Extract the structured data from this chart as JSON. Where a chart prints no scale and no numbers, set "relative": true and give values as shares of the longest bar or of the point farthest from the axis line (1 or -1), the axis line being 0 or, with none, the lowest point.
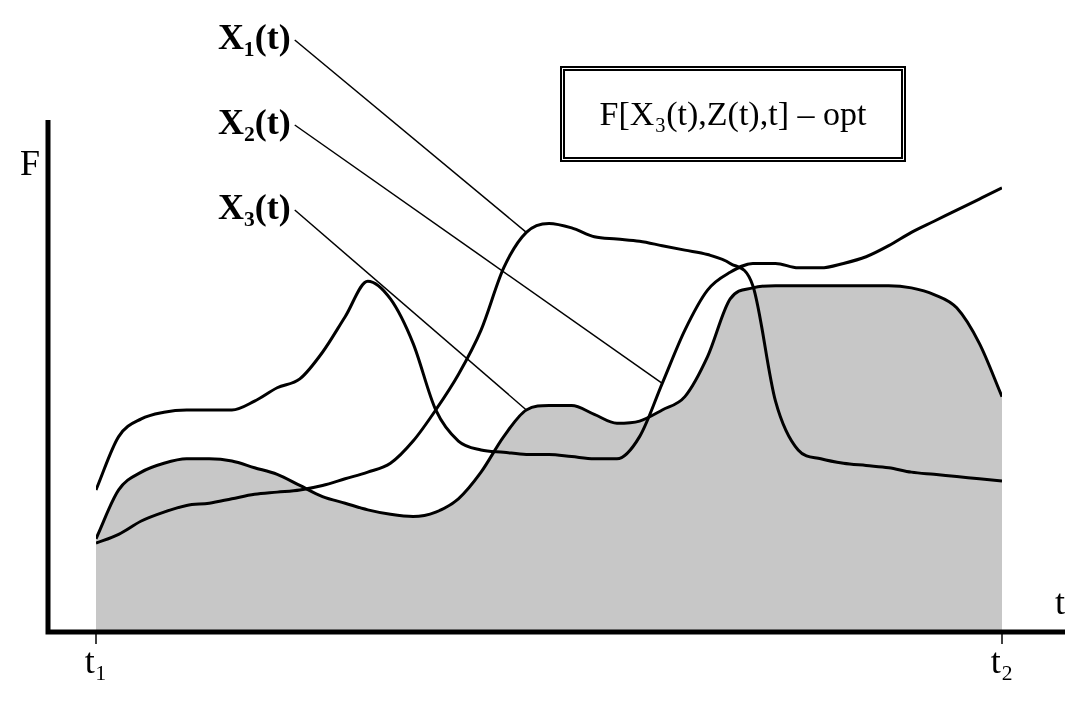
{
  "chart_data": {
    "type": "line",
    "relative": true,
    "xlabel": "t",
    "ylabel": "F",
    "legend": false,
    "grid": false,
    "marker": "none",
    "line_style": "solid",
    "annotations": [
      "F[X₃(t),Z(t),t] – opt"
    ],
    "categories": [
      "t₁",
      null,
      null,
      null,
      null,
      null,
      null,
      null,
      null,
      null,
      null,
      null,
      null,
      null,
      null,
      null,
      null,
      null,
      null,
      null,
      null,
      null,
      null,
      null,
      null,
      null,
      null,
      null,
      null,
      null,
      null,
      null,
      null,
      null,
      null,
      null,
      null,
      null,
      null,
      null,
      "t₂"
    ],
    "series": [
      {
        "name": "X₁(t)",
        "color": "#000000",
        "values": [
          0.2,
          0.22,
          0.25,
          0.27,
          0.285,
          0.29,
          0.3,
          0.31,
          0.315,
          0.32,
          0.33,
          0.345,
          0.36,
          0.38,
          0.43,
          0.5,
          0.58,
          0.68,
          0.82,
          0.9,
          0.92,
          0.91,
          0.89,
          0.885,
          0.88,
          0.87,
          0.86,
          0.85,
          0.83,
          0.78,
          0.52,
          0.41,
          0.39,
          0.38,
          0.375,
          0.37,
          0.36,
          0.355,
          0.35,
          0.345,
          0.34
        ]
      },
      {
        "name": "X₂(t)",
        "color": "#000000",
        "values": [
          0.32,
          0.44,
          0.48,
          0.495,
          0.5,
          0.5,
          0.5,
          0.52,
          0.55,
          0.57,
          0.63,
          0.71,
          0.79,
          0.75,
          0.65,
          0.5,
          0.43,
          0.41,
          0.405,
          0.4,
          0.4,
          0.395,
          0.39,
          0.39,
          0.44,
          0.56,
          0.68,
          0.77,
          0.81,
          0.83,
          0.83,
          0.82,
          0.82,
          0.83,
          0.845,
          0.87,
          0.9,
          0.925,
          0.95,
          0.975,
          1
        ]
      },
      {
        "name": "X₃(t)",
        "type": "area",
        "color": "#000000",
        "values": [
          0.21,
          0.32,
          0.36,
          0.38,
          0.39,
          0.39,
          0.385,
          0.37,
          0.355,
          0.33,
          0.305,
          0.29,
          0.275,
          0.265,
          0.26,
          0.27,
          0.3,
          0.36,
          0.44,
          0.5,
          0.51,
          0.51,
          0.49,
          0.47,
          0.475,
          0.5,
          0.53,
          0.62,
          0.75,
          0.775,
          0.78,
          0.78,
          0.78,
          0.78,
          0.78,
          0.78,
          0.775,
          0.76,
          0.73,
          0.65,
          0.53
        ]
      }
    ]
  }
}
